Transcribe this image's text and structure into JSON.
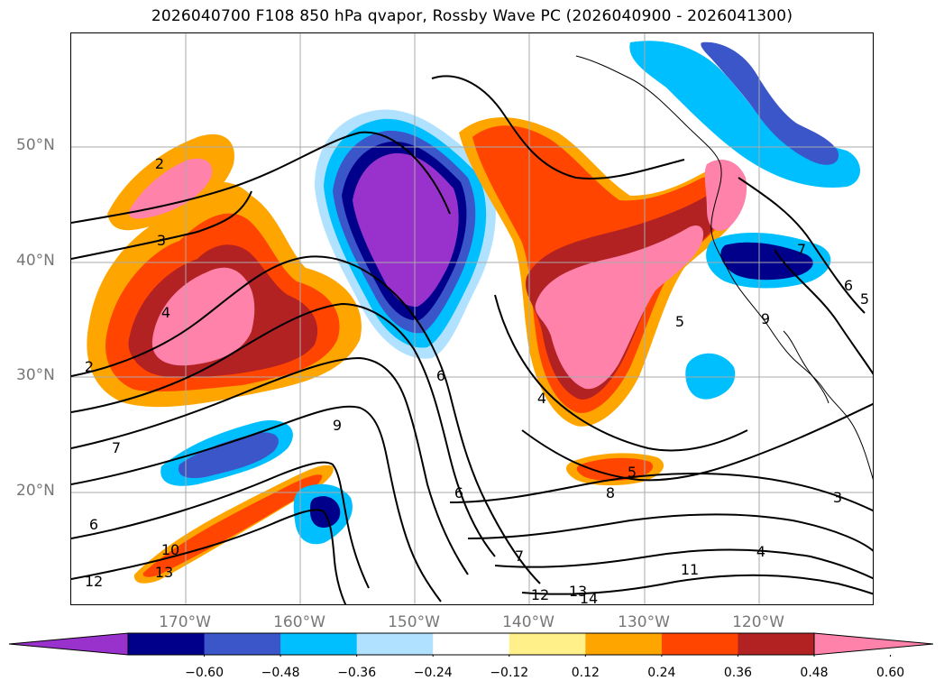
{
  "title": "2026040700 F108 850 hPa qvapor, Rossby Wave PC (2026040900 - 2026041300)",
  "map": {
    "type": "contour-map",
    "lat_labels": [
      "50°N",
      "40°N",
      "30°N",
      "20°N"
    ],
    "lon_labels": [
      "170°W",
      "160°W",
      "150°W",
      "140°W",
      "130°W",
      "120°W"
    ],
    "lon_range": [
      -180,
      -110
    ],
    "lat_range": [
      10,
      60
    ],
    "gridlines": true,
    "contour_labels": [
      "2",
      "3",
      "4",
      "2",
      "7",
      "9",
      "6",
      "6",
      "4",
      "5",
      "5",
      "8",
      "6",
      "10",
      "12",
      "13",
      "7",
      "11",
      "12",
      "13",
      "14",
      "4",
      "3",
      "7",
      "6",
      "5",
      "9"
    ]
  },
  "colorbar": {
    "ticks": [
      "−0.60",
      "−0.48",
      "−0.36",
      "−0.24",
      "−0.12",
      "0.12",
      "0.24",
      "0.36",
      "0.48",
      "0.60"
    ],
    "colors": [
      "#9932cc",
      "#00008b",
      "#3a56c9",
      "#00bfff",
      "#b0e2ff",
      "#ffffff",
      "#fff08a",
      "#ffa500",
      "#ff4500",
      "#b22222",
      "#ff82ab"
    ]
  }
}
